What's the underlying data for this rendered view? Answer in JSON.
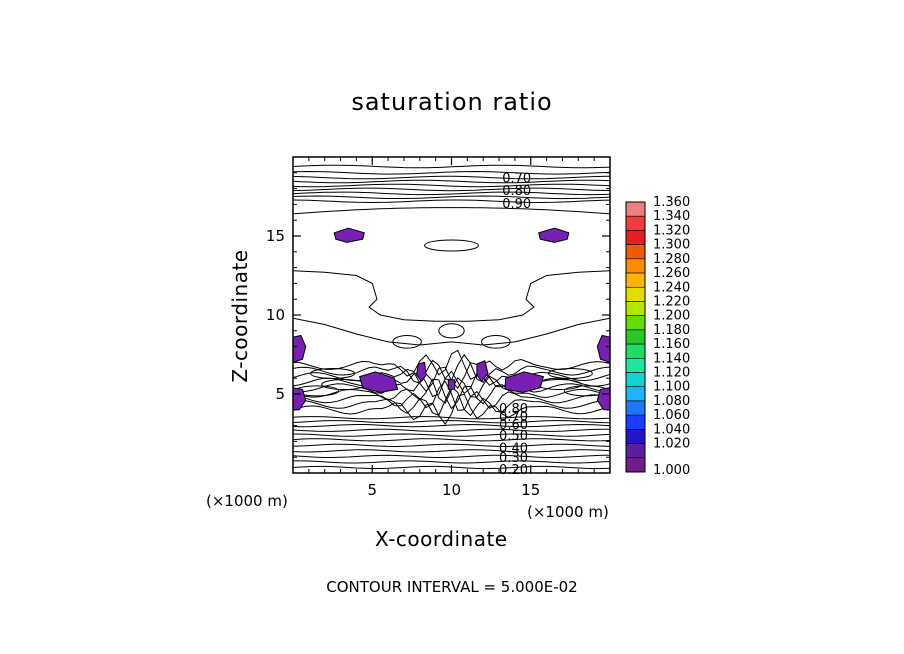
{
  "chart_data": {
    "type": "contour",
    "title": "saturation ratio",
    "xlabel": "X-coordinate",
    "ylabel": "Z-coordinate",
    "x_unit": "(×1000 m)",
    "z_unit": "(×1000 m)",
    "xlim": [
      0,
      20
    ],
    "ylim": [
      0,
      20
    ],
    "x_ticks": [
      5,
      10,
      15
    ],
    "y_ticks": [
      5,
      10,
      15
    ],
    "contour_interval": "CONTOUR INTERVAL = 5.000E-02",
    "contour_labels": [
      "0.70",
      "0.80",
      "0.90",
      "0.80",
      "0.70",
      "0.60",
      "0.50",
      "0.40",
      "0.30",
      "0.20"
    ],
    "colorbar": {
      "labels": [
        "1.360",
        "1.340",
        "1.320",
        "1.300",
        "1.280",
        "1.260",
        "1.240",
        "1.220",
        "1.200",
        "1.180",
        "1.160",
        "1.140",
        "1.120",
        "1.100",
        "1.080",
        "1.060",
        "1.040",
        "1.020",
        "1.000"
      ],
      "colors": [
        "#f08080",
        "#f03c3c",
        "#e61e1e",
        "#f05a00",
        "#ff8c00",
        "#ffb400",
        "#e6dc00",
        "#b4e600",
        "#64dc00",
        "#28c828",
        "#1edc64",
        "#1ee6a0",
        "#14d2d2",
        "#1eb4ff",
        "#1e78ff",
        "#1e3cff",
        "#2814c8",
        "#5a1ea0",
        "#6e1e8c"
      ]
    },
    "shaded_regions_color": "#7820b4",
    "grid": false
  }
}
